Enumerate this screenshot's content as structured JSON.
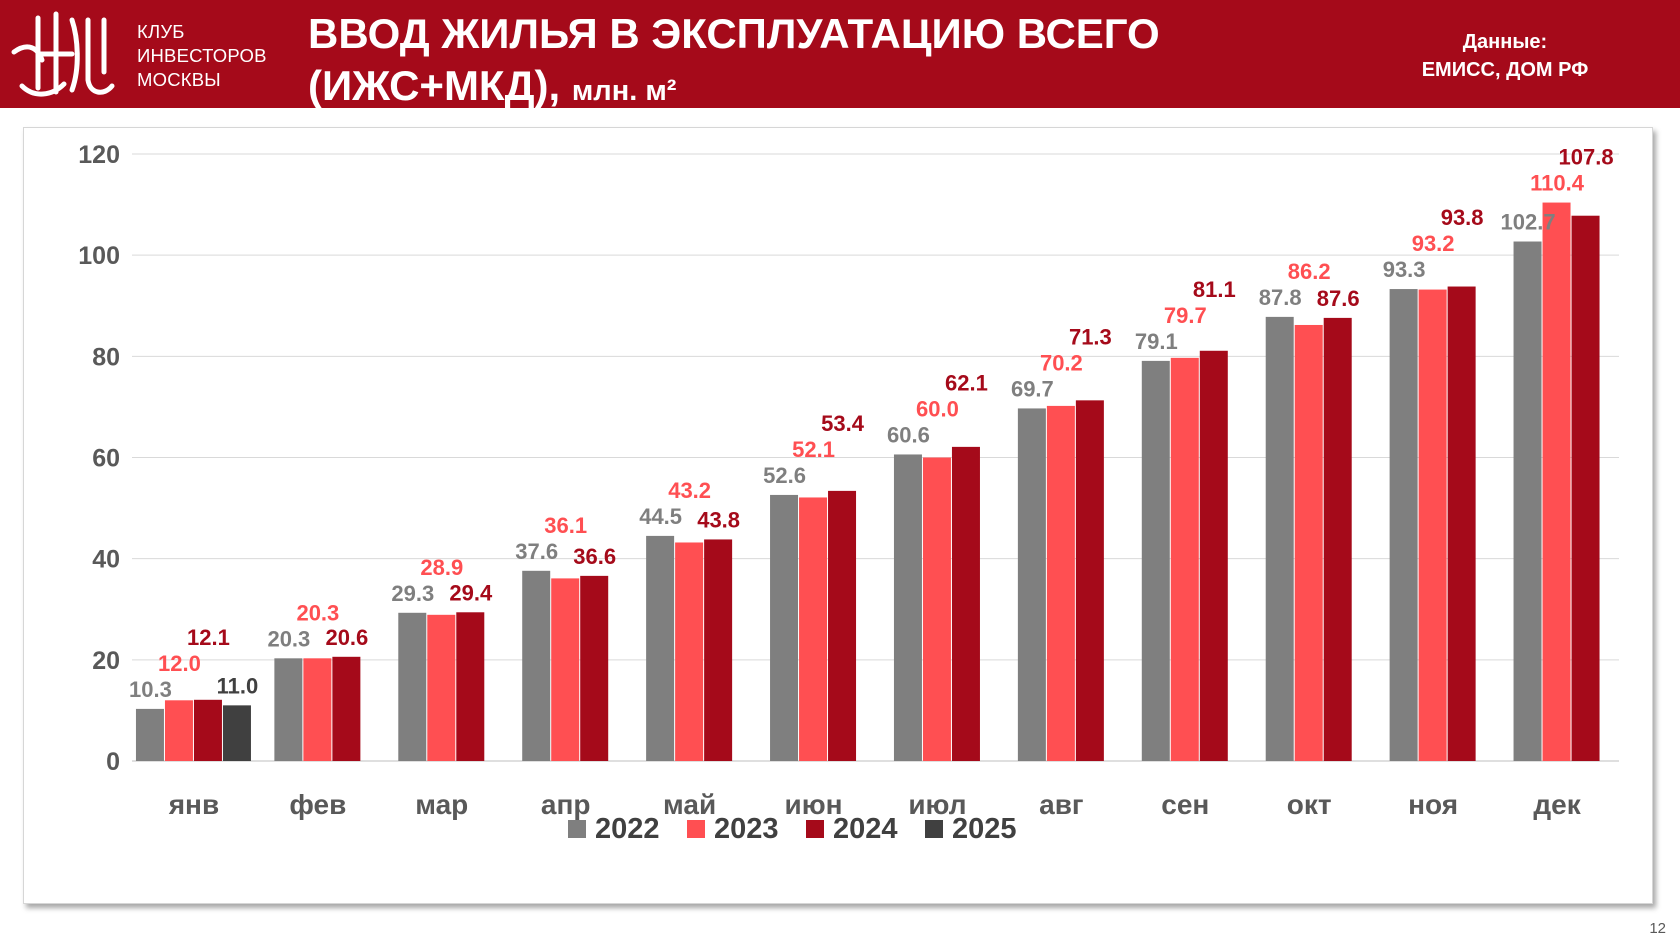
{
  "header": {
    "logo_lines": [
      "КЛУБ",
      "ИНВЕСТОРОВ",
      "МОСКВЫ"
    ],
    "title_line1": "ВВОД ЖИЛЬЯ В ЭКСПЛУАТАЦИЮ ВСЕГО",
    "title_line2": "(ИЖС+МКД),",
    "title_units": "млн. м²",
    "source_label": "Данные:",
    "source_value": "ЕМИСС, ДОМ РФ"
  },
  "page_number": "12",
  "colors": {
    "header_bg": "#a50a1a",
    "2022": "#7f7f7f",
    "2023": "#ff4f52",
    "2024": "#a50a1a",
    "2025": "#404040"
  },
  "chart_data": {
    "type": "bar",
    "categories": [
      "янв",
      "фев",
      "мар",
      "апр",
      "май",
      "июн",
      "июл",
      "авг",
      "сен",
      "окт",
      "ноя",
      "дек"
    ],
    "series": [
      {
        "name": "2022",
        "values": [
          10.3,
          20.3,
          29.3,
          37.6,
          44.5,
          52.6,
          60.6,
          69.7,
          79.1,
          87.8,
          93.3,
          102.7
        ]
      },
      {
        "name": "2023",
        "values": [
          12.0,
          20.3,
          28.9,
          36.1,
          43.2,
          52.1,
          60.0,
          70.2,
          79.7,
          86.2,
          93.2,
          110.4
        ]
      },
      {
        "name": "2024",
        "values": [
          12.1,
          20.6,
          29.4,
          36.6,
          43.8,
          53.4,
          62.1,
          71.3,
          81.1,
          87.6,
          93.8,
          107.8
        ]
      },
      {
        "name": "2025",
        "values": [
          11.0,
          null,
          null,
          null,
          null,
          null,
          null,
          null,
          null,
          null,
          null,
          null
        ]
      }
    ],
    "yticks": [
      0,
      20,
      40,
      60,
      80,
      100,
      120
    ],
    "ylim": [
      0,
      120
    ],
    "grid": true,
    "legend_position": "bottom"
  }
}
